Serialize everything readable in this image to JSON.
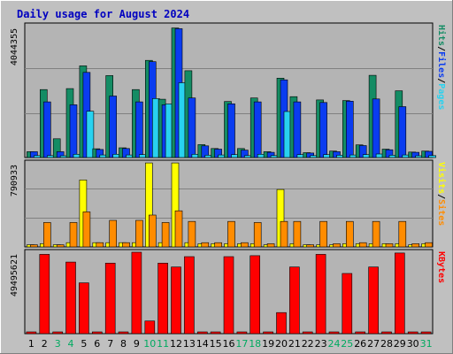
{
  "title": "Daily usage for August 2024",
  "colors": {
    "background": "#c0c0c0",
    "plot": "#b4b4b4",
    "grid": "#808080",
    "title": "#0000c0",
    "hits": "#148c64",
    "files": "#0a3cf0",
    "pages": "#28d2f0",
    "visits": "#ffff00",
    "sites": "#ff8c00",
    "kbytes": "#ff0000",
    "day_label": "#000000",
    "weekend_label": "#00aa60"
  },
  "chart_data": [
    {
      "type": "bar",
      "panel": "hits-files-pages",
      "ylabel_parts": [
        "Pages",
        "/",
        "Files",
        "/",
        "Hits"
      ],
      "ymax_label": "4044355",
      "ylim": [
        0,
        4044355
      ],
      "grid": true,
      "categories": [
        "1",
        "2",
        "3",
        "4",
        "5",
        "6",
        "7",
        "8",
        "9",
        "10",
        "11",
        "12",
        "13",
        "14",
        "15",
        "16",
        "17",
        "18",
        "19",
        "20",
        "21",
        "22",
        "23",
        "24",
        "25",
        "26",
        "27",
        "28",
        "29",
        "30",
        "31"
      ],
      "series": [
        {
          "name": "Hits",
          "values": [
            180000,
            2100000,
            580000,
            2130000,
            2830000,
            270000,
            2530000,
            300000,
            2100000,
            3000000,
            1800000,
            4000000,
            2680000,
            400000,
            280000,
            1730000,
            280000,
            1840000,
            180000,
            2450000,
            1880000,
            150000,
            1780000,
            200000,
            1760000,
            390000,
            2540000,
            260000,
            2060000,
            170000,
            200000
          ]
        },
        {
          "name": "Files",
          "values": [
            180000,
            1720000,
            180000,
            1630000,
            2630000,
            250000,
            1900000,
            280000,
            1720000,
            2960000,
            1630000,
            3980000,
            1840000,
            360000,
            260000,
            1660000,
            230000,
            1720000,
            160000,
            2400000,
            1720000,
            140000,
            1700000,
            180000,
            1740000,
            370000,
            1810000,
            240000,
            1570000,
            160000,
            190000
          ]
        },
        {
          "name": "Pages",
          "values": [
            60000,
            60000,
            50000,
            100000,
            1430000,
            80000,
            100000,
            80000,
            90000,
            1820000,
            1660000,
            2310000,
            100000,
            70000,
            80000,
            90000,
            60000,
            100000,
            60000,
            1420000,
            90000,
            60000,
            90000,
            70000,
            80000,
            90000,
            110000,
            70000,
            80000,
            50000,
            60000
          ]
        }
      ]
    },
    {
      "type": "bar",
      "panel": "visits-sites",
      "ylabel_parts": [
        "Sites",
        "/",
        "Visits"
      ],
      "ymax_label": "790933",
      "ylim": [
        0,
        790933
      ],
      "grid": true,
      "categories": [
        "1",
        "2",
        "3",
        "4",
        "5",
        "6",
        "7",
        "8",
        "9",
        "10",
        "11",
        "12",
        "13",
        "14",
        "15",
        "16",
        "17",
        "18",
        "19",
        "20",
        "21",
        "22",
        "23",
        "24",
        "25",
        "26",
        "27",
        "28",
        "29",
        "30",
        "31"
      ],
      "series": [
        {
          "name": "Visits",
          "values": [
            20000,
            30000,
            20000,
            40000,
            630000,
            40000,
            40000,
            40000,
            40000,
            790000,
            40000,
            790000,
            40000,
            30000,
            30000,
            30000,
            30000,
            30000,
            20000,
            540000,
            30000,
            20000,
            20000,
            20000,
            30000,
            30000,
            30000,
            30000,
            30000,
            20000,
            30000
          ]
        },
        {
          "name": "Sites",
          "values": [
            20000,
            230000,
            20000,
            230000,
            330000,
            40000,
            250000,
            40000,
            250000,
            300000,
            230000,
            340000,
            240000,
            40000,
            40000,
            240000,
            40000,
            230000,
            30000,
            240000,
            240000,
            20000,
            240000,
            30000,
            240000,
            40000,
            240000,
            30000,
            240000,
            30000,
            40000
          ]
        }
      ]
    },
    {
      "type": "bar",
      "panel": "kbytes",
      "ylabel_parts": [
        "KBytes"
      ],
      "ymax_label": "49495621",
      "ylim": [
        0,
        49495621
      ],
      "grid": false,
      "categories": [
        "1",
        "2",
        "3",
        "4",
        "5",
        "6",
        "7",
        "8",
        "9",
        "10",
        "11",
        "12",
        "13",
        "14",
        "15",
        "16",
        "17",
        "18",
        "19",
        "20",
        "21",
        "22",
        "23",
        "24",
        "25",
        "26",
        "27",
        "28",
        "29",
        "30",
        "31"
      ],
      "series": [
        {
          "name": "KBytes",
          "values": [
            300000,
            48200000,
            300000,
            43500000,
            30900000,
            300000,
            42900000,
            300000,
            49500000,
            7700000,
            42900000,
            40500000,
            46800000,
            1000000,
            300000,
            46800000,
            300000,
            47400000,
            300000,
            12800000,
            40500000,
            300000,
            48200000,
            300000,
            36600000,
            300000,
            40500000,
            300000,
            49000000,
            300000,
            300000
          ]
        }
      ]
    }
  ],
  "day_labels": [
    "1",
    "2",
    "3",
    "4",
    "5",
    "6",
    "7",
    "8",
    "9",
    "10",
    "11",
    "12",
    "13",
    "14",
    "15",
    "16",
    "17",
    "18",
    "19",
    "20",
    "21",
    "22",
    "23",
    "24",
    "25",
    "26",
    "27",
    "28",
    "29",
    "30",
    "31"
  ],
  "weekend_days": [
    "3",
    "4",
    "10",
    "11",
    "17",
    "18",
    "24",
    "25",
    "31"
  ]
}
